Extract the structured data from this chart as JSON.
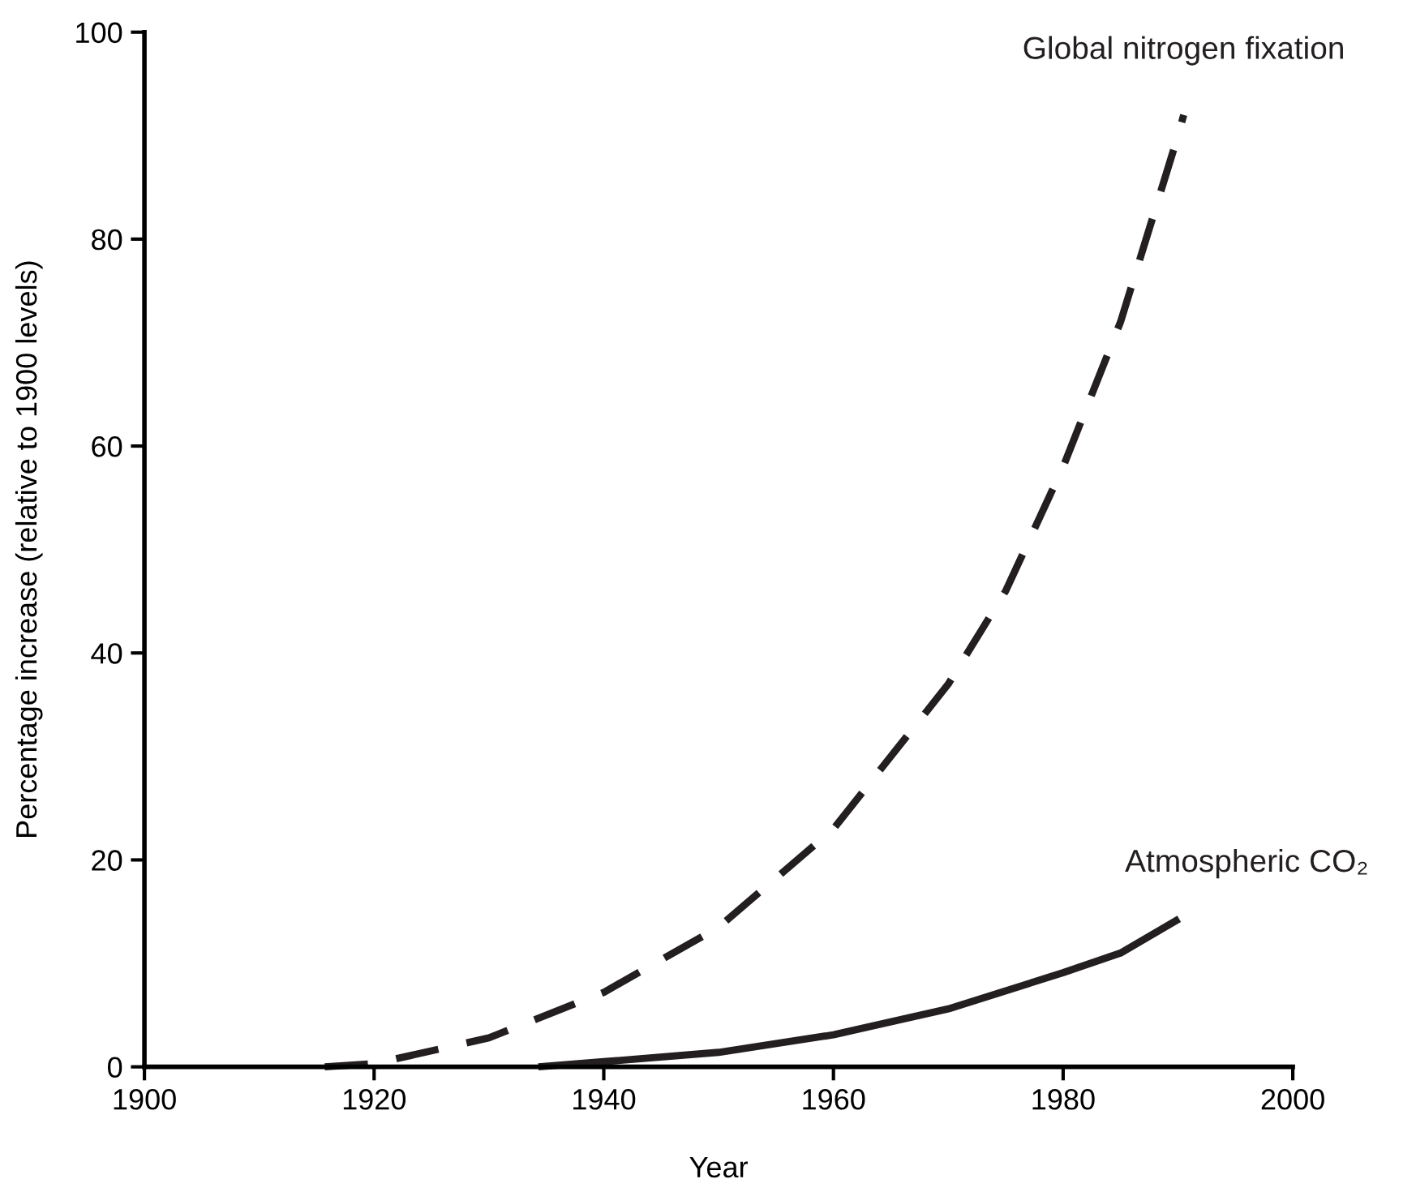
{
  "chart_data": {
    "type": "line",
    "xlabel": "Year",
    "ylabel": "Percentage increase (relative to 1900 levels)",
    "xlim": [
      1900,
      2000
    ],
    "xticks": [
      1900,
      1920,
      1940,
      1960,
      1980,
      2000
    ],
    "ylim": [
      0,
      100
    ],
    "yticks": [
      0,
      20,
      40,
      60,
      80,
      100
    ],
    "grid": false,
    "legend": false,
    "marker": "none",
    "series": [
      {
        "name": "Global nitrogen fixation",
        "color": "#231f20",
        "line_style": "dashed",
        "x": [
          1915.7,
          1920,
          1930,
          1940,
          1950,
          1960,
          1965,
          1970,
          1975,
          1980,
          1985,
          1990,
          1990.5
        ],
        "values": [
          0,
          0.3,
          2.8,
          7.2,
          13.5,
          23,
          30,
          37,
          46,
          58,
          72,
          90,
          92
        ]
      },
      {
        "name": "Atmospheric CO₂",
        "color": "#231f20",
        "line_style": "solid",
        "x": [
          1934.3,
          1940,
          1950,
          1960,
          1970,
          1980,
          1985,
          1990.1
        ],
        "values": [
          0,
          0.5,
          1.4,
          3.1,
          5.6,
          9.1,
          11,
          14.3
        ]
      }
    ]
  }
}
